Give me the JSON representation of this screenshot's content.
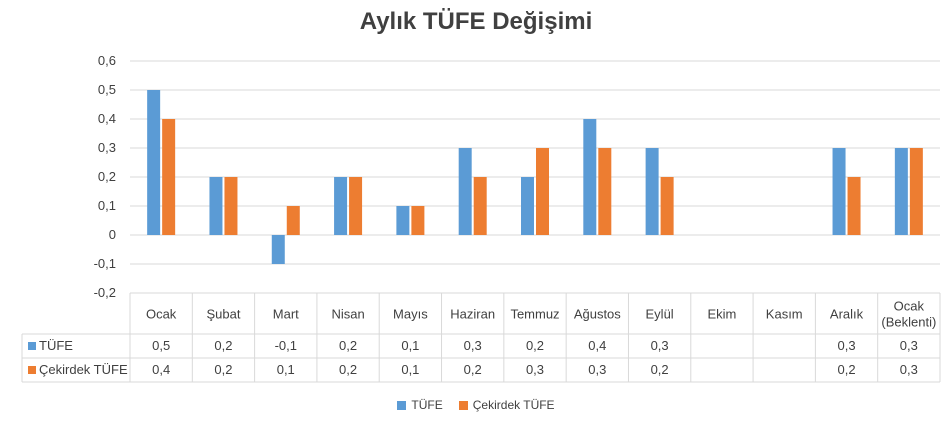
{
  "chart_data": {
    "type": "bar",
    "title": "Aylık TÜFE Değişimi",
    "categories": [
      "Ocak",
      "Şubat",
      "Mart",
      "Nisan",
      "Mayıs",
      "Haziran",
      "Temmuz",
      "Ağustos",
      "Eylül",
      "Ekim",
      "Kasım",
      "Aralık",
      "Ocak (Beklenti)"
    ],
    "category_lines": [
      [
        "Ocak"
      ],
      [
        "Şubat"
      ],
      [
        "Mart"
      ],
      [
        "Nisan"
      ],
      [
        "Mayıs"
      ],
      [
        "Haziran"
      ],
      [
        "Temmuz"
      ],
      [
        "Ağustos"
      ],
      [
        "Eylül"
      ],
      [
        "Ekim"
      ],
      [
        "Kasım"
      ],
      [
        "Aralık"
      ],
      [
        "Ocak",
        "(Beklenti)"
      ]
    ],
    "series": [
      {
        "name": "TÜFE",
        "color": "#5B9BD5",
        "values": [
          0.5,
          0.2,
          -0.1,
          0.2,
          0.1,
          0.3,
          0.2,
          0.4,
          0.3,
          null,
          null,
          0.3,
          0.3
        ],
        "labels": [
          "0,5",
          "0,2",
          "-0,1",
          "0,2",
          "0,1",
          "0,3",
          "0,2",
          "0,4",
          "0,3",
          "",
          "",
          "0,3",
          "0,3"
        ]
      },
      {
        "name": "Çekirdek TÜFE",
        "color": "#ED7D31",
        "values": [
          0.4,
          0.2,
          0.1,
          0.2,
          0.1,
          0.2,
          0.3,
          0.3,
          0.2,
          null,
          null,
          0.2,
          0.3
        ],
        "labels": [
          "0,4",
          "0,2",
          "0,1",
          "0,2",
          "0,1",
          "0,2",
          "0,3",
          "0,3",
          "0,2",
          "",
          "",
          "0,2",
          "0,3"
        ]
      }
    ],
    "ylim": [
      -0.2,
      0.6
    ],
    "yticks": [
      0.6,
      0.5,
      0.4,
      0.3,
      0.2,
      0.1,
      0,
      -0.1,
      -0.2
    ],
    "ytick_labels": [
      "0,6",
      "0,5",
      "0,4",
      "0,3",
      "0,2",
      "0,1",
      "0",
      "-0,1",
      "-0,2"
    ],
    "grid": true,
    "data_table": true,
    "legend_position": "bottom"
  }
}
